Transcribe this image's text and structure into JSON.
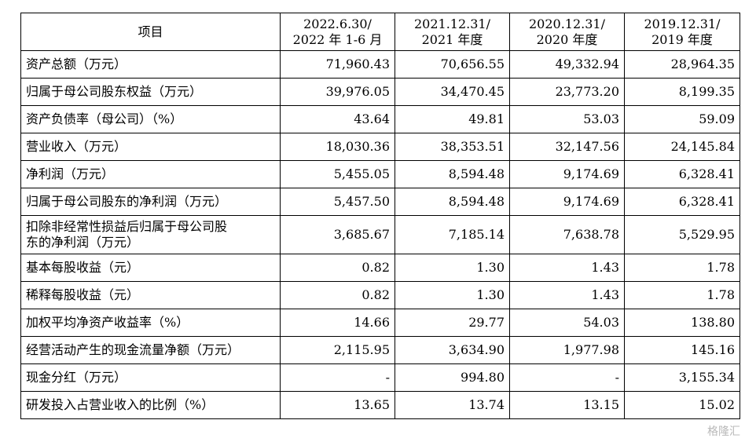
{
  "table": {
    "header": {
      "item": "项目",
      "col1": [
        "2022.6.30/",
        "2022 年 1-6 月"
      ],
      "col2": [
        "2021.12.31/",
        "2021 年度"
      ],
      "col3": [
        "2020.12.31/",
        "2020 年度"
      ],
      "col4": [
        "2019.12.31/",
        "2019 年度"
      ]
    },
    "rows": [
      {
        "label": [
          "资产总额（万元）"
        ],
        "values": [
          "71,960.43",
          "70,656.55",
          "49,332.94",
          "28,964.35"
        ]
      },
      {
        "label": [
          "归属于母公司股东权益（万元）"
        ],
        "values": [
          "39,976.05",
          "34,470.45",
          "23,773.20",
          "8,199.35"
        ]
      },
      {
        "label": [
          "资产负债率（母公司）（%）"
        ],
        "values": [
          "43.64",
          "49.81",
          "53.03",
          "59.09"
        ]
      },
      {
        "label": [
          "营业收入（万元）"
        ],
        "values": [
          "18,030.36",
          "38,353.51",
          "32,147.56",
          "24,145.84"
        ]
      },
      {
        "label": [
          "净利润（万元）"
        ],
        "values": [
          "5,455.05",
          "8,594.48",
          "9,174.69",
          "6,328.41"
        ]
      },
      {
        "label": [
          "归属于母公司股东的净利润（万元）"
        ],
        "values": [
          "5,457.50",
          "8,594.48",
          "9,174.69",
          "6,328.41"
        ]
      },
      {
        "label": [
          "扣除非经常性损益后归属于母公司股",
          "东的净利润（万元）"
        ],
        "values": [
          "3,685.67",
          "7,185.14",
          "7,638.78",
          "5,529.95"
        ]
      },
      {
        "label": [
          "基本每股收益（元）"
        ],
        "values": [
          "0.82",
          "1.30",
          "1.43",
          "1.78"
        ]
      },
      {
        "label": [
          "稀释每股收益（元）"
        ],
        "values": [
          "0.82",
          "1.30",
          "1.43",
          "1.78"
        ]
      },
      {
        "label": [
          "加权平均净资产收益率（%）"
        ],
        "values": [
          "14.66",
          "29.77",
          "54.03",
          "138.80"
        ]
      },
      {
        "label": [
          "经营活动产生的现金流量净额（万元）"
        ],
        "values": [
          "2,115.95",
          "3,634.90",
          "1,977.98",
          "145.16"
        ]
      },
      {
        "label": [
          "现金分红（万元）"
        ],
        "values": [
          "-",
          "994.80",
          "-",
          "3,155.34"
        ]
      },
      {
        "label": [
          "研发投入占营业收入的比例（%）"
        ],
        "values": [
          "13.65",
          "13.74",
          "13.15",
          "15.02"
        ]
      }
    ]
  },
  "watermark": "格隆汇"
}
